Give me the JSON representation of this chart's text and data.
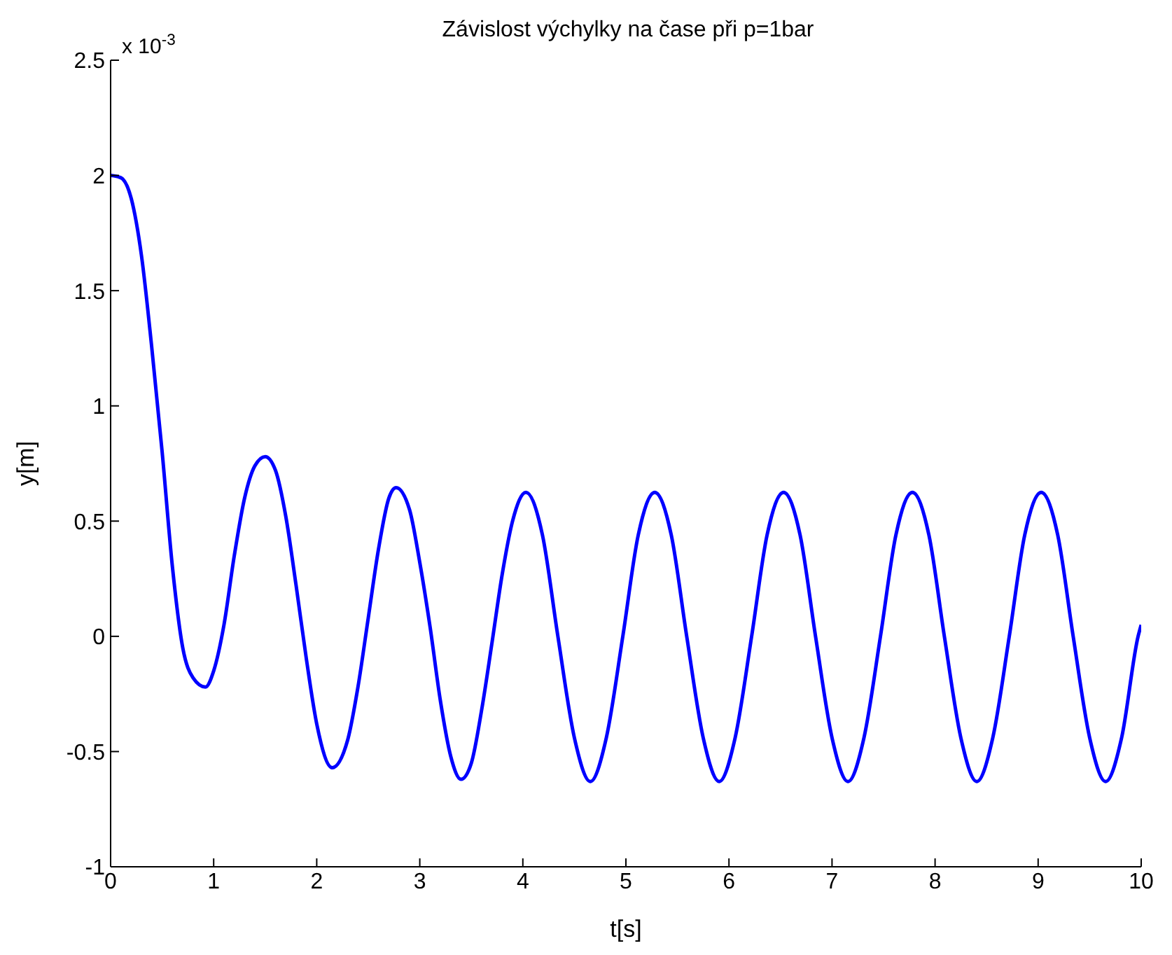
{
  "chart_data": {
    "type": "line",
    "title": "Závislost výchylky na čase při p=1bar",
    "xlabel": "t[s]",
    "ylabel": "y[m]",
    "annotations": [
      "x 10$^{-3}$"
    ],
    "xlim": [
      0,
      10
    ],
    "xticks": [
      0,
      1,
      2,
      3,
      4,
      5,
      6,
      7,
      8,
      9,
      10
    ],
    "ylim": [
      -1,
      2.5
    ],
    "yticks": [
      -1,
      -0.5,
      0,
      0.5,
      1,
      1.5,
      2,
      2.5
    ],
    "grid": false,
    "legend": false,
    "marker": "none",
    "line_style": "solid",
    "series": [
      {
        "color": "#0000ff",
        "x": [
          0,
          0.1,
          0.2,
          0.3,
          0.4,
          0.5,
          0.6,
          0.7,
          0.8,
          0.92,
          1.0,
          1.1,
          1.2,
          1.3,
          1.4,
          1.5,
          1.6,
          1.7,
          1.8,
          1.9,
          2.0,
          2.15,
          2.3,
          2.4,
          2.5,
          2.6,
          2.7,
          2.77,
          2.9,
          3.0,
          3.1,
          3.2,
          3.3,
          3.4,
          3.5,
          3.6,
          3.7,
          3.8,
          3.9,
          4.03,
          4.19,
          4.34,
          4.5,
          4.655,
          4.81,
          4.97,
          5.12,
          5.28,
          5.44,
          5.59,
          5.75,
          5.905,
          6.06,
          6.22,
          6.37,
          6.53,
          6.69,
          6.84,
          7.0,
          7.155,
          7.31,
          7.47,
          7.62,
          7.78,
          7.94,
          8.09,
          8.25,
          8.405,
          8.56,
          8.72,
          8.87,
          9.03,
          9.19,
          9.34,
          9.5,
          9.655,
          9.81,
          9.97,
          10
        ],
        "values": [
          2.0,
          1.99,
          1.9,
          1.65,
          1.25,
          0.8,
          0.3,
          -0.05,
          -0.18,
          -0.22,
          -0.15,
          0.05,
          0.35,
          0.6,
          0.74,
          0.78,
          0.72,
          0.52,
          0.22,
          -0.1,
          -0.38,
          -0.57,
          -0.45,
          -0.22,
          0.08,
          0.38,
          0.6,
          0.645,
          0.55,
          0.32,
          0.04,
          -0.28,
          -0.52,
          -0.62,
          -0.55,
          -0.32,
          -0.03,
          0.27,
          0.5,
          0.625,
          0.44,
          0,
          -0.44,
          -0.63,
          -0.44,
          0,
          0.44,
          0.625,
          0.44,
          0,
          -0.44,
          -0.63,
          -0.44,
          0,
          0.44,
          0.625,
          0.44,
          0,
          -0.44,
          -0.63,
          -0.44,
          0,
          0.44,
          0.625,
          0.44,
          0,
          -0.44,
          -0.63,
          -0.44,
          0,
          0.44,
          0.625,
          0.44,
          0,
          -0.44,
          -0.63,
          -0.44,
          0,
          0.05
        ]
      }
    ]
  }
}
